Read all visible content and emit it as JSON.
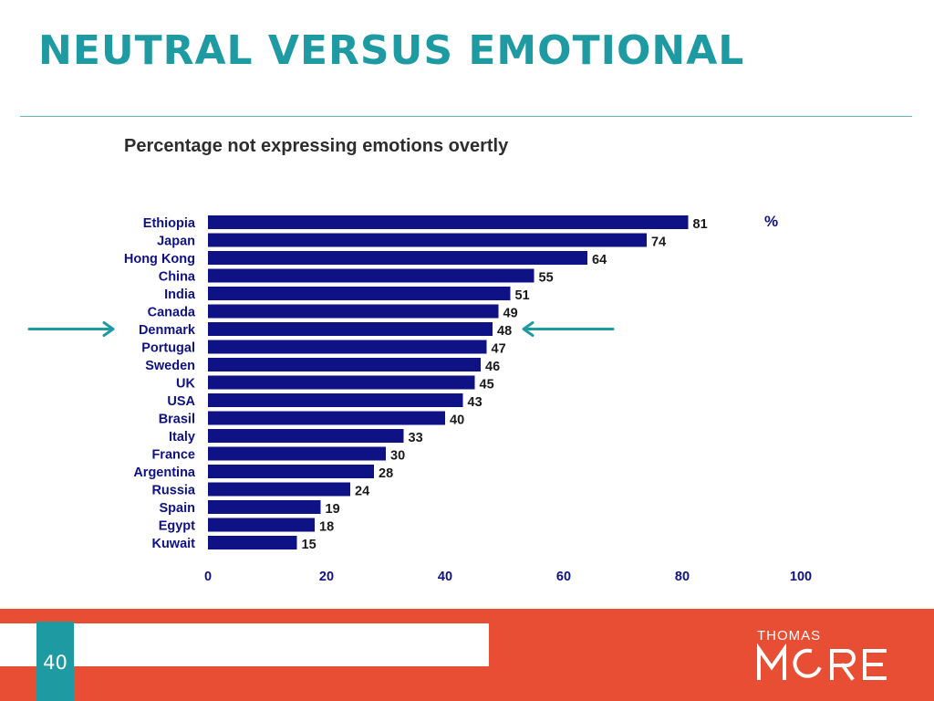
{
  "slide": {
    "title": "NEUTRAL VERSUS EMOTIONAL",
    "page_number": "40"
  },
  "logo": {
    "line1": "THOMAS",
    "line2": "MORE"
  },
  "colors": {
    "title": "#1e9aa2",
    "bar": "#0f1285",
    "arrow": "#1e9aa2",
    "footer": "#e84e34",
    "page_box": "#1e9aa2"
  },
  "chart_data": {
    "type": "bar",
    "orientation": "horizontal",
    "title": "Percentage not expressing emotions overtly",
    "unit_label": "%",
    "categories": [
      "Ethiopia",
      "Japan",
      "Hong Kong",
      "China",
      "India",
      "Canada",
      "Denmark",
      "Portugal",
      "Sweden",
      "UK",
      "USA",
      "Brasil",
      "Italy",
      "France",
      "Argentina",
      "Russia",
      "Spain",
      "Egypt",
      "Kuwait"
    ],
    "values": [
      81,
      74,
      64,
      55,
      51,
      49,
      48,
      47,
      46,
      45,
      43,
      40,
      33,
      30,
      28,
      24,
      19,
      18,
      15
    ],
    "xlim": [
      0,
      100
    ],
    "xticks": [
      "0",
      "20",
      "40",
      "60",
      "80",
      "100"
    ],
    "highlighted_category": "Denmark",
    "grid": false,
    "data_labels": true
  }
}
